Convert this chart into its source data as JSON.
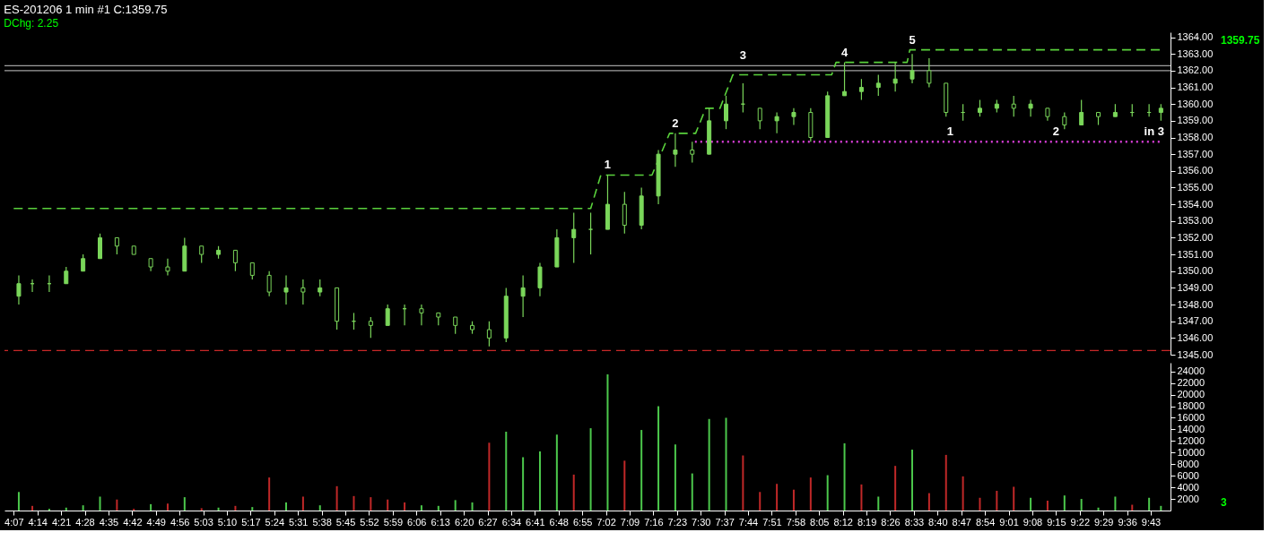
{
  "chart_data": [
    {
      "type": "candlestick",
      "title": "ES-201206 1 min  #1 C:1359.75",
      "subtitle": "DChg: 2.25",
      "color": "#7ad65a",
      "x": [
        4.1417,
        4.2083,
        4.2917,
        4.375,
        4.4583,
        4.5417,
        4.625,
        4.7083,
        4.7917,
        4.875,
        4.9583,
        5.0417,
        5.125,
        5.2083,
        5.2917,
        5.375,
        5.4583,
        5.5417,
        5.625,
        5.7083,
        5.7917,
        5.875,
        5.9583,
        6.0417,
        6.125,
        6.2083,
        6.2917,
        6.375,
        6.4583,
        6.5417,
        6.625,
        6.7083,
        6.7917,
        6.875,
        6.9583,
        7.0417,
        7.125,
        7.2083,
        7.2917,
        7.375,
        7.4583,
        7.5417,
        7.625,
        7.7083,
        7.7917,
        7.875,
        7.9583,
        8.0417,
        8.125,
        8.2083,
        8.2917,
        8.375,
        8.4583,
        8.5417,
        8.625,
        8.7083,
        8.7917,
        8.875,
        8.9583,
        9.0417,
        9.125,
        9.2083,
        9.2917,
        9.375,
        9.4583,
        9.5417,
        9.625,
        9.7083,
        9.7667
      ],
      "ohlc": [
        [
          1348.5,
          1349.75,
          1348,
          1349.25
        ],
        [
          1349.25,
          1349.5,
          1348.75,
          1349.25
        ],
        [
          1349.25,
          1349.75,
          1348.75,
          1349.25
        ],
        [
          1349.25,
          1350.25,
          1349.25,
          1350
        ],
        [
          1350,
          1351,
          1350,
          1350.75
        ],
        [
          1350.75,
          1352.25,
          1350.75,
          1352
        ],
        [
          1352,
          1352,
          1351,
          1351.5
        ],
        [
          1351.5,
          1351.5,
          1351,
          1351
        ],
        [
          1350.75,
          1350.75,
          1350,
          1350.25
        ],
        [
          1350.25,
          1350.75,
          1349.75,
          1350
        ],
        [
          1350,
          1352,
          1350,
          1351.5
        ],
        [
          1351.5,
          1351.5,
          1350.5,
          1351
        ],
        [
          1351,
          1351.5,
          1350.75,
          1351.25
        ],
        [
          1351.25,
          1351.25,
          1350,
          1350.5
        ],
        [
          1350.5,
          1350.5,
          1349.5,
          1349.75
        ],
        [
          1349.75,
          1350,
          1348.5,
          1348.75
        ],
        [
          1348.75,
          1349.75,
          1348,
          1349
        ],
        [
          1349,
          1349.5,
          1348,
          1348.75
        ],
        [
          1348.75,
          1349.5,
          1348.5,
          1349
        ],
        [
          1349,
          1349,
          1346.5,
          1347
        ],
        [
          1347,
          1347.5,
          1346.5,
          1347
        ],
        [
          1347,
          1347.25,
          1346,
          1346.75
        ],
        [
          1346.75,
          1348,
          1346.75,
          1347.75
        ],
        [
          1347.75,
          1348,
          1346.75,
          1347.75
        ],
        [
          1347.75,
          1348,
          1346.75,
          1347.5
        ],
        [
          1347.5,
          1347.5,
          1346.75,
          1347.25
        ],
        [
          1347.25,
          1347.25,
          1346.25,
          1346.75
        ],
        [
          1346.75,
          1347,
          1346.25,
          1346.5
        ],
        [
          1346.5,
          1347,
          1345.5,
          1346
        ],
        [
          1346,
          1349,
          1345.75,
          1348.5
        ],
        [
          1348.5,
          1349.75,
          1347.25,
          1349
        ],
        [
          1349,
          1350.5,
          1348.5,
          1350.25
        ],
        [
          1350.25,
          1352.5,
          1350.25,
          1352
        ],
        [
          1352,
          1353.5,
          1350.5,
          1352.5
        ],
        [
          1352.5,
          1353.5,
          1351,
          1352.5
        ],
        [
          1352.5,
          1355.75,
          1352.5,
          1354
        ],
        [
          1354,
          1354.75,
          1352.25,
          1352.75
        ],
        [
          1352.75,
          1355,
          1352.5,
          1354.5
        ],
        [
          1354.5,
          1357.25,
          1354,
          1357
        ],
        [
          1357,
          1358.25,
          1356.25,
          1357.25
        ],
        [
          1357.25,
          1357.75,
          1356.5,
          1357
        ],
        [
          1357,
          1359.75,
          1357,
          1359
        ],
        [
          1359,
          1360.5,
          1358.5,
          1360
        ],
        [
          1360,
          1361.25,
          1359.5,
          1360
        ],
        [
          1359.75,
          1359.75,
          1358.5,
          1359
        ],
        [
          1359,
          1359.5,
          1358.25,
          1359.25
        ],
        [
          1359.25,
          1359.75,
          1358.75,
          1359.5
        ],
        [
          1359.5,
          1359.75,
          1357.75,
          1358
        ],
        [
          1358,
          1360.75,
          1358,
          1360.5
        ],
        [
          1360.5,
          1362.5,
          1360.5,
          1360.75
        ],
        [
          1360.75,
          1361.5,
          1360.25,
          1361
        ],
        [
          1361,
          1361.75,
          1360.5,
          1361.25
        ],
        [
          1361.25,
          1362.5,
          1360.75,
          1361.5
        ],
        [
          1361.5,
          1363,
          1361.25,
          1362
        ],
        [
          1362,
          1362.75,
          1361,
          1361.25
        ],
        [
          1361.25,
          1361.25,
          1359.25,
          1359.5
        ],
        [
          1359.5,
          1360,
          1359,
          1359.5
        ],
        [
          1359.5,
          1360.25,
          1359.25,
          1359.75
        ],
        [
          1359.75,
          1360.25,
          1359.5,
          1360
        ],
        [
          1360,
          1360.5,
          1359.25,
          1359.75
        ],
        [
          1359.75,
          1360.25,
          1359.25,
          1360
        ],
        [
          1359.75,
          1359.75,
          1359,
          1359.25
        ],
        [
          1359.25,
          1359.5,
          1358.5,
          1358.75
        ],
        [
          1358.75,
          1360.25,
          1358.75,
          1359.5
        ],
        [
          1359.5,
          1359.5,
          1358.75,
          1359.25
        ],
        [
          1359.25,
          1360,
          1359.25,
          1359.5
        ],
        [
          1359.5,
          1360,
          1359.25,
          1359.5
        ],
        [
          1359.5,
          1360,
          1359.25,
          1359.5
        ],
        [
          1359.5,
          1360,
          1359,
          1359.75
        ]
      ],
      "xlim": [
        4.0933,
        9.7917
      ],
      "ylim": [
        1345,
        1364.3
      ],
      "yticks": [
        {
          "value": 1345,
          "label": "1345.00"
        },
        {
          "value": 1346,
          "label": "1346.00"
        },
        {
          "value": 1347,
          "label": "1347.00"
        },
        {
          "value": 1348,
          "label": "1348.00"
        },
        {
          "value": 1349,
          "label": "1349.00"
        },
        {
          "value": 1350,
          "label": "1350.00"
        },
        {
          "value": 1351,
          "label": "1351.00"
        },
        {
          "value": 1352,
          "label": "1352.00"
        },
        {
          "value": 1353,
          "label": "1353.00"
        },
        {
          "value": 1354,
          "label": "1354.00"
        },
        {
          "value": 1355,
          "label": "1355.00"
        },
        {
          "value": 1356,
          "label": "1356.00"
        },
        {
          "value": 1357,
          "label": "1357.00"
        },
        {
          "value": 1358,
          "label": "1358.00"
        },
        {
          "value": 1359,
          "label": "1359.00"
        },
        {
          "value": 1360,
          "label": "1360.00"
        },
        {
          "value": 1361,
          "label": "1361.00"
        },
        {
          "value": 1362,
          "label": "1362.00"
        },
        {
          "value": 1363,
          "label": "1363.00"
        },
        {
          "value": 1364,
          "label": "1364.00"
        }
      ],
      "series": [
        {
          "type": "line",
          "color": "#5ad23c",
          "line_style": "dashed",
          "x": [
            4.1167,
            6.9583,
            7.0083,
            7.26,
            7.3467,
            7.475,
            7.525,
            7.595,
            7.6583,
            8.145,
            8.1667,
            8.5167,
            8.53,
            9.7667
          ],
          "values": [
            1353.75,
            1353.75,
            1355.75,
            1355.75,
            1358.25,
            1358.25,
            1359.75,
            1359.75,
            1361.75,
            1361.75,
            1362.5,
            1362.5,
            1363.25,
            1363.25
          ]
        },
        {
          "type": "line",
          "color": "#d43cd4",
          "line_style": "dotted",
          "x": [
            7.4717,
            9.7667
          ],
          "values": [
            1357.75,
            1357.75
          ]
        }
      ],
      "ref_lines": [
        {
          "axis": "y",
          "value": 1362.3,
          "color": "#a0a0a0",
          "line_style": "solid"
        },
        {
          "axis": "y",
          "value": 1362.0,
          "color": "#a0a0a0",
          "line_style": "solid"
        },
        {
          "axis": "y",
          "value": 1345.25,
          "color": "#c82828",
          "line_style": "dashed"
        }
      ],
      "annotations": [
        {
          "text": "1",
          "x": 7.0417,
          "y": 1355.75
        },
        {
          "text": "2",
          "x": 7.375,
          "y": 1358.25
        },
        {
          "text": "3",
          "x": 7.7083,
          "y": 1362.3
        },
        {
          "text": "4",
          "x": 8.2083,
          "y": 1362.5
        },
        {
          "text": "5",
          "x": 8.5417,
          "y": 1363.25
        },
        {
          "text": "1",
          "x": 8.7283,
          "y": 1357.75
        },
        {
          "text": "2",
          "x": 9.25,
          "y": 1357.75
        },
        {
          "text": "in 3",
          "x": 9.7333,
          "y": 1357.75
        },
        "1359.75"
      ],
      "grid": false,
      "tick_labels": "y"
    },
    {
      "type": "bar",
      "x": [
        4.1417,
        4.2083,
        4.2917,
        4.375,
        4.4583,
        4.5417,
        4.625,
        4.7083,
        4.7917,
        4.875,
        4.9583,
        5.0417,
        5.125,
        5.2083,
        5.2917,
        5.375,
        5.4583,
        5.5417,
        5.625,
        5.7083,
        5.7917,
        5.875,
        5.9583,
        6.0417,
        6.125,
        6.2083,
        6.2917,
        6.375,
        6.4583,
        6.5417,
        6.625,
        6.7083,
        6.7917,
        6.875,
        6.9583,
        7.0417,
        7.125,
        7.2083,
        7.2917,
        7.375,
        7.4583,
        7.5417,
        7.625,
        7.7083,
        7.7917,
        7.875,
        7.9583,
        8.0417,
        8.125,
        8.2083,
        8.2917,
        8.375,
        8.4583,
        8.5417,
        8.625,
        8.7083,
        8.7917,
        8.875,
        8.9583,
        9.0417,
        9.125,
        9.2083,
        9.2917,
        9.375,
        9.4583,
        9.5417,
        9.625,
        9.7083,
        9.7667
      ],
      "values": [
        3200,
        800,
        300,
        500,
        900,
        2400,
        1900,
        300,
        1100,
        1200,
        2300,
        400,
        500,
        800,
        600,
        5700,
        1400,
        2400,
        900,
        4200,
        2500,
        2300,
        1900,
        1400,
        900,
        800,
        1800,
        1400,
        11700,
        13600,
        9200,
        10200,
        13100,
        6200,
        14200,
        23500,
        8600,
        13900,
        18000,
        11400,
        6400,
        15800,
        16000,
        9500,
        3200,
        4600,
        3600,
        5700,
        6100,
        11600,
        4500,
        2400,
        7700,
        10500,
        3000,
        9600,
        5900,
        2200,
        3400,
        4100,
        2200,
        1700,
        2600,
        2000,
        500,
        2400,
        1000,
        2200,
        800
      ],
      "colors": [
        "#4cc84c",
        "#c02828",
        "#4cc84c",
        "#4cc84c",
        "#4cc84c",
        "#4cc84c",
        "#c02828",
        "#c02828",
        "#4cc84c",
        "#c02828",
        "#4cc84c",
        "#c02828",
        "#4cc84c",
        "#c02828",
        "#4cc84c",
        "#c02828",
        "#4cc84c",
        "#c02828",
        "#4cc84c",
        "#c02828",
        "#c02828",
        "#c02828",
        "#c02828",
        "#c02828",
        "#4cc84c",
        "#4cc84c",
        "#4cc84c",
        "#4cc84c",
        "#c02828",
        "#4cc84c",
        "#4cc84c",
        "#4cc84c",
        "#4cc84c",
        "#c02828",
        "#4cc84c",
        "#4cc84c",
        "#c02828",
        "#4cc84c",
        "#4cc84c",
        "#4cc84c",
        "#4cc84c",
        "#4cc84c",
        "#4cc84c",
        "#c02828",
        "#c02828",
        "#c02828",
        "#c02828",
        "#c02828",
        "#4cc84c",
        "#4cc84c",
        "#c02828",
        "#4cc84c",
        "#c02828",
        "#4cc84c",
        "#c02828",
        "#c02828",
        "#c02828",
        "#c02828",
        "#c02828",
        "#c02828",
        "#4cc84c",
        "#c02828",
        "#4cc84c",
        "#4cc84c",
        "#4cc84c",
        "#4cc84c",
        "#c02828",
        "#4cc84c",
        "#4cc84c"
      ],
      "xlim": [
        4.0933,
        9.7917
      ],
      "ylim": [
        0,
        25500
      ],
      "xticks": [
        {
          "value": 4.1167,
          "label": "4:07"
        },
        {
          "value": 4.2333,
          "label": "4:14"
        },
        {
          "value": 4.35,
          "label": "4:21"
        },
        {
          "value": 4.4667,
          "label": "4:28"
        },
        {
          "value": 4.5833,
          "label": "4:35"
        },
        {
          "value": 4.7,
          "label": "4:42"
        },
        {
          "value": 4.8167,
          "label": "4:49"
        },
        {
          "value": 4.9333,
          "label": "4:56"
        },
        {
          "value": 5.05,
          "label": "5:03"
        },
        {
          "value": 5.1667,
          "label": "5:10"
        },
        {
          "value": 5.2833,
          "label": "5:17"
        },
        {
          "value": 5.4,
          "label": "5:24"
        },
        {
          "value": 5.5167,
          "label": "5:31"
        },
        {
          "value": 5.6333,
          "label": "5:38"
        },
        {
          "value": 5.75,
          "label": "5:45"
        },
        {
          "value": 5.8667,
          "label": "5:52"
        },
        {
          "value": 5.9833,
          "label": "5:59"
        },
        {
          "value": 6.1,
          "label": "6:06"
        },
        {
          "value": 6.2167,
          "label": "6:13"
        },
        {
          "value": 6.3333,
          "label": "6:20"
        },
        {
          "value": 6.45,
          "label": "6:27"
        },
        {
          "value": 6.5667,
          "label": "6:34"
        },
        {
          "value": 6.6833,
          "label": "6:41"
        },
        {
          "value": 6.8,
          "label": "6:48"
        },
        {
          "value": 6.9167,
          "label": "6:55"
        },
        {
          "value": 7.0333,
          "label": "7:02"
        },
        {
          "value": 7.15,
          "label": "7:09"
        },
        {
          "value": 7.2667,
          "label": "7:16"
        },
        {
          "value": 7.3833,
          "label": "7:23"
        },
        {
          "value": 7.5,
          "label": "7:30"
        },
        {
          "value": 7.6167,
          "label": "7:37"
        },
        {
          "value": 7.7333,
          "label": "7:44"
        },
        {
          "value": 7.85,
          "label": "7:51"
        },
        {
          "value": 7.9667,
          "label": "7:58"
        },
        {
          "value": 8.0833,
          "label": "8:05"
        },
        {
          "value": 8.2,
          "label": "8:12"
        },
        {
          "value": 8.3167,
          "label": "8:19"
        },
        {
          "value": 8.4333,
          "label": "8:26"
        },
        {
          "value": 8.55,
          "label": "8:33"
        },
        {
          "value": 8.6667,
          "label": "8:40"
        },
        {
          "value": 8.7833,
          "label": "8:47"
        },
        {
          "value": 8.9,
          "label": "8:54"
        },
        {
          "value": 9.0167,
          "label": "9:01"
        },
        {
          "value": 9.1333,
          "label": "9:08"
        },
        {
          "value": 9.25,
          "label": "9:15"
        },
        {
          "value": 9.3667,
          "label": "9:22"
        },
        {
          "value": 9.4833,
          "label": "9:29"
        },
        {
          "value": 9.6,
          "label": "9:36"
        },
        {
          "value": 9.7167,
          "label": "9:43"
        }
      ],
      "yticks": [
        2000,
        4000,
        6000,
        8000,
        10000,
        12000,
        14000,
        16000,
        18000,
        20000,
        22000,
        24000
      ],
      "annotations": [
        "3"
      ],
      "grid": false
    }
  ]
}
